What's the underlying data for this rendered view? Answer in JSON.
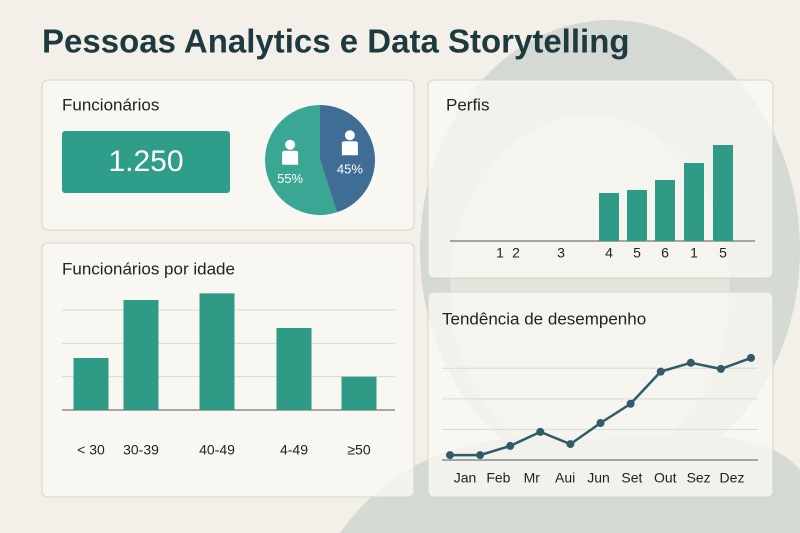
{
  "title": "Pessoas Analytics e Data Storytelling",
  "kpi": {
    "label": "Funcionários",
    "value": "1.250"
  },
  "chart_data": [
    {
      "type": "pie",
      "values": [
        55,
        45
      ],
      "value_labels": [
        "55%",
        "45%"
      ],
      "colors": [
        "#3aa795",
        "#3f6d95"
      ]
    },
    {
      "type": "bar",
      "title": "Funcionários por idade",
      "categories": [
        "< 30",
        "30-39",
        "40-49",
        "4-49",
        "≥50"
      ],
      "values": [
        15.6,
        33,
        35,
        24.6,
        10
      ],
      "color": "#2f9a86",
      "ylim": [
        0,
        36
      ],
      "yticks": [
        0,
        10,
        20,
        30
      ],
      "grid": true
    },
    {
      "type": "bar",
      "title": "Perfis",
      "categories": [
        "1",
        "2",
        "3",
        "4",
        "5",
        "6",
        "1",
        "5"
      ],
      "values": [
        null,
        null,
        null,
        48,
        51,
        61,
        78,
        96
      ],
      "color": "#2f9a86",
      "ylim": [
        0,
        100
      ],
      "yticks": [
        0
      ],
      "grid": false
    },
    {
      "type": "line",
      "title": "Tendência de desempenho",
      "categories": [
        null,
        "Jan",
        "Feb",
        "Mr",
        "Aui",
        "Jun",
        "Set",
        "Out",
        "Sez",
        "Dez",
        null
      ],
      "values": [
        1.6,
        1.6,
        4.6,
        9.2,
        5.2,
        12.1,
        18.4,
        28.9,
        31.8,
        29.8,
        33.4
      ],
      "color": "#2f5c68",
      "ylim": [
        0,
        35
      ],
      "yticks": [
        0,
        10,
        20,
        30
      ],
      "grid": true
    }
  ]
}
